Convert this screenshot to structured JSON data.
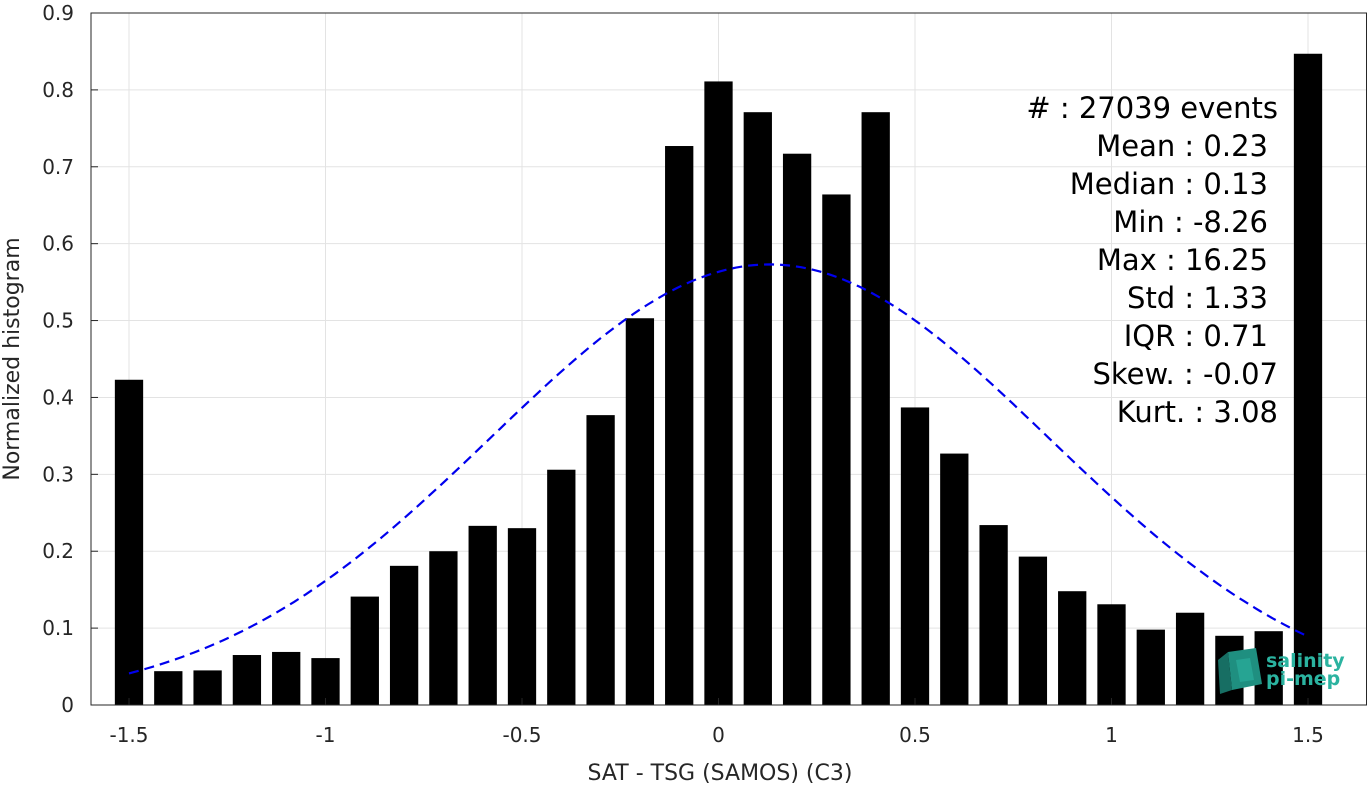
{
  "chart_data": {
    "type": "bar",
    "xlabel": "SAT - TSG (SAMOS) (C3)",
    "ylabel": "Normalized histogram",
    "xlim": [
      -1.5,
      1.5
    ],
    "ylim": [
      0,
      0.9
    ],
    "xticks": [
      -1.5,
      -1,
      -0.5,
      0,
      0.5,
      1,
      1.5
    ],
    "xtick_labels": [
      "-1.5",
      "-1",
      "-0.5",
      "0",
      "0.5",
      "1",
      "1.5"
    ],
    "yticks": [
      0,
      0.1,
      0.2,
      0.3,
      0.4,
      0.5,
      0.6,
      0.7,
      0.8,
      0.9
    ],
    "ytick_labels": [
      "0",
      "0.1",
      "0.2",
      "0.3",
      "0.4",
      "0.5",
      "0.6",
      "0.7",
      "0.8",
      "0.9"
    ],
    "grid": true,
    "bar_color": "#000000",
    "x": [
      -1.5,
      -1.4,
      -1.3,
      -1.2,
      -1.1,
      -1.0,
      -0.9,
      -0.8,
      -0.7,
      -0.6,
      -0.5,
      -0.4,
      -0.3,
      -0.2,
      -0.1,
      0.0,
      0.1,
      0.2,
      0.3,
      0.4,
      0.5,
      0.6,
      0.7,
      0.8,
      0.9,
      1.0,
      1.1,
      1.2,
      1.3,
      1.4,
      1.5
    ],
    "values": [
      0.423,
      0.044,
      0.045,
      0.065,
      0.069,
      0.061,
      0.141,
      0.181,
      0.2,
      0.233,
      0.23,
      0.306,
      0.377,
      0.503,
      0.727,
      0.811,
      0.771,
      0.717,
      0.664,
      0.771,
      0.387,
      0.327,
      0.234,
      0.193,
      0.148,
      0.131,
      0.098,
      0.12,
      0.09,
      0.096,
      0.847
    ],
    "fit": {
      "type": "gaussian",
      "mean": 0.13,
      "std": 0.71,
      "peak": 0.573,
      "range": [
        -1.5,
        1.5
      ],
      "color": "#0000ee",
      "style": "dashed"
    },
    "stats": [
      "#  : 27039 events",
      "Mean : 0.23",
      "Median : 0.13",
      "Min : -8.26",
      "Max : 16.25",
      "Std : 1.33",
      "IQR : 0.71",
      "Skew. : -0.07",
      "Kurt. : 3.08"
    ]
  },
  "logo": {
    "line1": "salinity",
    "line2": "pi-mep",
    "icon": "salinity-cube-icon",
    "color": "#2bb3a0"
  }
}
